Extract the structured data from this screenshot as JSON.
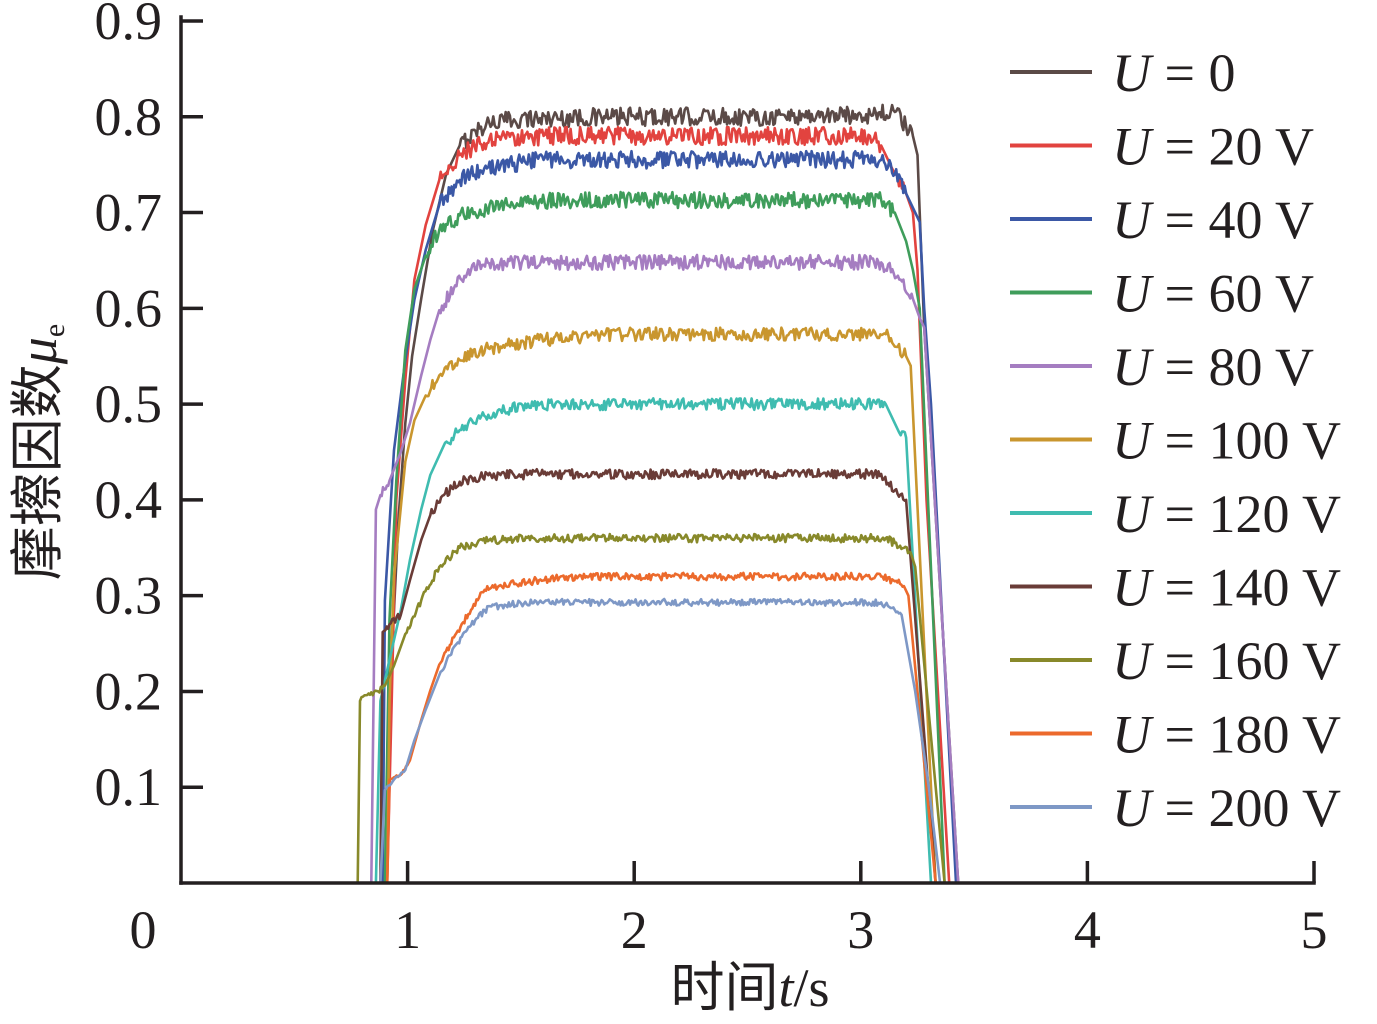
{
  "chart_data": {
    "type": "line",
    "xlabel": {
      "text": "时间",
      "symbol": "t",
      "unit": "/s"
    },
    "ylabel": {
      "text": "摩擦因数",
      "symbol": "μ",
      "subscript": "e"
    },
    "xlim": [
      0,
      5
    ],
    "ylim": [
      0,
      0.9
    ],
    "xticks": [
      "1",
      "2",
      "3",
      "4",
      "5"
    ],
    "yticks": [
      "0.1",
      "0.2",
      "0.3",
      "0.4",
      "0.5",
      "0.6",
      "0.7",
      "0.8",
      "0.9"
    ],
    "origin_label": "0",
    "grid": false,
    "legend": "top-right",
    "series": [
      {
        "name": "U = 0",
        "color": "#5b4a47",
        "points": [
          [
            0.9,
            0
          ],
          [
            0.92,
            0.19
          ],
          [
            0.96,
            0.38
          ],
          [
            0.99,
            0.48
          ],
          [
            1.02,
            0.55
          ],
          [
            1.06,
            0.61
          ],
          [
            1.11,
            0.68
          ],
          [
            1.17,
            0.74
          ],
          [
            1.23,
            0.77
          ],
          [
            1.3,
            0.785
          ],
          [
            1.36,
            0.794
          ],
          [
            1.5,
            0.798
          ],
          [
            2.0,
            0.8
          ],
          [
            2.5,
            0.8
          ],
          [
            3.0,
            0.802
          ],
          [
            3.15,
            0.805
          ],
          [
            3.2,
            0.79
          ],
          [
            3.23,
            0.78
          ],
          [
            3.25,
            0.76
          ],
          [
            3.26,
            0.7
          ],
          [
            3.28,
            0.58
          ],
          [
            3.43,
            0
          ]
        ]
      },
      {
        "name": "U = 20 V",
        "color": "#e2433f",
        "points": [
          [
            0.91,
            0
          ],
          [
            0.93,
            0.19
          ],
          [
            0.95,
            0.4
          ],
          [
            0.99,
            0.525
          ],
          [
            1.03,
            0.63
          ],
          [
            1.08,
            0.687
          ],
          [
            1.14,
            0.734
          ],
          [
            1.23,
            0.76
          ],
          [
            1.32,
            0.772
          ],
          [
            1.41,
            0.776
          ],
          [
            1.6,
            0.78
          ],
          [
            2.0,
            0.78
          ],
          [
            2.5,
            0.78
          ],
          [
            3.04,
            0.78
          ],
          [
            3.09,
            0.77
          ],
          [
            3.15,
            0.74
          ],
          [
            3.2,
            0.72
          ],
          [
            3.23,
            0.7
          ],
          [
            3.25,
            0.64
          ],
          [
            3.29,
            0.4
          ],
          [
            3.39,
            0
          ]
        ]
      },
      {
        "name": "U = 40 V",
        "color": "#3b58a6",
        "points": [
          [
            0.89,
            0
          ],
          [
            0.9,
            0.295
          ],
          [
            0.94,
            0.452
          ],
          [
            0.99,
            0.546
          ],
          [
            1.03,
            0.609
          ],
          [
            1.08,
            0.661
          ],
          [
            1.14,
            0.708
          ],
          [
            1.23,
            0.734
          ],
          [
            1.32,
            0.744
          ],
          [
            1.41,
            0.749
          ],
          [
            1.6,
            0.755
          ],
          [
            2.0,
            0.755
          ],
          [
            2.5,
            0.755
          ],
          [
            3.09,
            0.755
          ],
          [
            3.15,
            0.74
          ],
          [
            3.2,
            0.72
          ],
          [
            3.24,
            0.7
          ],
          [
            3.26,
            0.69
          ],
          [
            3.28,
            0.6
          ],
          [
            3.31,
            0.5
          ],
          [
            3.42,
            0
          ]
        ]
      },
      {
        "name": "U = 60 V",
        "color": "#3f9d5b",
        "points": [
          [
            0.9,
            0
          ],
          [
            0.92,
            0.275
          ],
          [
            0.95,
            0.42
          ],
          [
            0.99,
            0.556
          ],
          [
            1.03,
            0.62
          ],
          [
            1.08,
            0.655
          ],
          [
            1.14,
            0.682
          ],
          [
            1.23,
            0.697
          ],
          [
            1.32,
            0.703
          ],
          [
            1.41,
            0.708
          ],
          [
            1.58,
            0.712
          ],
          [
            2.0,
            0.713
          ],
          [
            2.5,
            0.713
          ],
          [
            3.09,
            0.713
          ],
          [
            3.15,
            0.7
          ],
          [
            3.2,
            0.67
          ],
          [
            3.23,
            0.64
          ],
          [
            3.26,
            0.6
          ],
          [
            3.37,
            0
          ]
        ]
      },
      {
        "name": "U = 80 V",
        "color": "#a57dc1",
        "points": [
          [
            0.84,
            0
          ],
          [
            0.86,
            0.39
          ],
          [
            0.88,
            0.405
          ],
          [
            0.92,
            0.42
          ],
          [
            0.97,
            0.45
          ],
          [
            1.01,
            0.48
          ],
          [
            1.06,
            0.53
          ],
          [
            1.1,
            0.567
          ],
          [
            1.14,
            0.598
          ],
          [
            1.21,
            0.624
          ],
          [
            1.28,
            0.64
          ],
          [
            1.36,
            0.647
          ],
          [
            1.6,
            0.648
          ],
          [
            2.0,
            0.648
          ],
          [
            2.5,
            0.648
          ],
          [
            3.09,
            0.648
          ],
          [
            3.17,
            0.63
          ],
          [
            3.23,
            0.61
          ],
          [
            3.26,
            0.59
          ],
          [
            3.28,
            0.58
          ],
          [
            3.43,
            0
          ]
        ]
      },
      {
        "name": "U = 100 V",
        "color": "#c9962e",
        "points": [
          [
            0.91,
            0
          ],
          [
            0.92,
            0.19
          ],
          [
            0.94,
            0.32
          ],
          [
            0.99,
            0.44
          ],
          [
            1.03,
            0.483
          ],
          [
            1.08,
            0.509
          ],
          [
            1.14,
            0.53
          ],
          [
            1.23,
            0.546
          ],
          [
            1.32,
            0.556
          ],
          [
            1.41,
            0.56
          ],
          [
            1.58,
            0.567
          ],
          [
            1.85,
            0.572
          ],
          [
            2.0,
            0.573
          ],
          [
            2.5,
            0.573
          ],
          [
            3.11,
            0.573
          ],
          [
            3.15,
            0.56
          ],
          [
            3.2,
            0.55
          ],
          [
            3.22,
            0.54
          ],
          [
            3.33,
            0
          ]
        ]
      },
      {
        "name": "U = 120 V",
        "color": "#3fbcb0",
        "points": [
          [
            0.86,
            0
          ],
          [
            0.88,
            0.19
          ],
          [
            0.92,
            0.233
          ],
          [
            0.97,
            0.285
          ],
          [
            1.01,
            0.337
          ],
          [
            1.06,
            0.39
          ],
          [
            1.1,
            0.426
          ],
          [
            1.16,
            0.457
          ],
          [
            1.23,
            0.473
          ],
          [
            1.32,
            0.485
          ],
          [
            1.41,
            0.494
          ],
          [
            1.58,
            0.499
          ],
          [
            2.0,
            0.5
          ],
          [
            2.5,
            0.5
          ],
          [
            3.11,
            0.5
          ],
          [
            3.15,
            0.48
          ],
          [
            3.17,
            0.47
          ],
          [
            3.2,
            0.465
          ],
          [
            3.31,
            0
          ]
        ]
      },
      {
        "name": "U = 140 V",
        "color": "#6a3c37",
        "points": [
          [
            0.88,
            0
          ],
          [
            0.89,
            0.262
          ],
          [
            0.92,
            0.27
          ],
          [
            0.97,
            0.28
          ],
          [
            1.01,
            0.316
          ],
          [
            1.06,
            0.358
          ],
          [
            1.1,
            0.384
          ],
          [
            1.16,
            0.405
          ],
          [
            1.23,
            0.419
          ],
          [
            1.32,
            0.424
          ],
          [
            1.41,
            0.426
          ],
          [
            1.6,
            0.427
          ],
          [
            2.0,
            0.427
          ],
          [
            2.5,
            0.427
          ],
          [
            3.09,
            0.427
          ],
          [
            3.15,
            0.41
          ],
          [
            3.2,
            0.4
          ],
          [
            3.33,
            0
          ]
        ]
      },
      {
        "name": "U = 160 V",
        "color": "#88892a",
        "points": [
          [
            0.78,
            0
          ],
          [
            0.79,
            0.19
          ],
          [
            0.81,
            0.196
          ],
          [
            0.87,
            0.2
          ],
          [
            0.9,
            0.206
          ],
          [
            0.94,
            0.227
          ],
          [
            0.99,
            0.26
          ],
          [
            1.06,
            0.295
          ],
          [
            1.14,
            0.33
          ],
          [
            1.23,
            0.35
          ],
          [
            1.36,
            0.358
          ],
          [
            1.6,
            0.36
          ],
          [
            2.0,
            0.36
          ],
          [
            2.5,
            0.36
          ],
          [
            3.11,
            0.36
          ],
          [
            3.15,
            0.355
          ],
          [
            3.22,
            0.345
          ],
          [
            3.24,
            0.33
          ],
          [
            3.37,
            0
          ]
        ]
      },
      {
        "name": "U = 180 V",
        "color": "#ec6a2c",
        "points": [
          [
            0.91,
            0
          ],
          [
            0.92,
            0.108
          ],
          [
            0.97,
            0.113
          ],
          [
            1.01,
            0.128
          ],
          [
            1.06,
            0.17
          ],
          [
            1.1,
            0.201
          ],
          [
            1.14,
            0.228
          ],
          [
            1.21,
            0.259
          ],
          [
            1.28,
            0.285
          ],
          [
            1.34,
            0.306
          ],
          [
            1.41,
            0.311
          ],
          [
            1.58,
            0.316
          ],
          [
            1.67,
            0.319
          ],
          [
            2.0,
            0.32
          ],
          [
            2.5,
            0.32
          ],
          [
            3.09,
            0.32
          ],
          [
            3.15,
            0.315
          ],
          [
            3.19,
            0.31
          ],
          [
            3.21,
            0.3
          ],
          [
            3.33,
            0
          ]
        ]
      },
      {
        "name": "U = 200 V",
        "color": "#7e98c6",
        "points": [
          [
            0.88,
            0
          ],
          [
            0.9,
            0.097
          ],
          [
            0.94,
            0.108
          ],
          [
            0.99,
            0.118
          ],
          [
            1.03,
            0.149
          ],
          [
            1.08,
            0.181
          ],
          [
            1.14,
            0.217
          ],
          [
            1.21,
            0.248
          ],
          [
            1.28,
            0.269
          ],
          [
            1.34,
            0.285
          ],
          [
            1.41,
            0.29
          ],
          [
            1.58,
            0.293
          ],
          [
            2.0,
            0.293
          ],
          [
            2.5,
            0.293
          ],
          [
            3.09,
            0.293
          ],
          [
            3.15,
            0.285
          ],
          [
            3.18,
            0.28
          ],
          [
            3.24,
            0.2
          ],
          [
            3.3,
            0.1
          ],
          [
            3.35,
            0
          ]
        ]
      }
    ]
  }
}
